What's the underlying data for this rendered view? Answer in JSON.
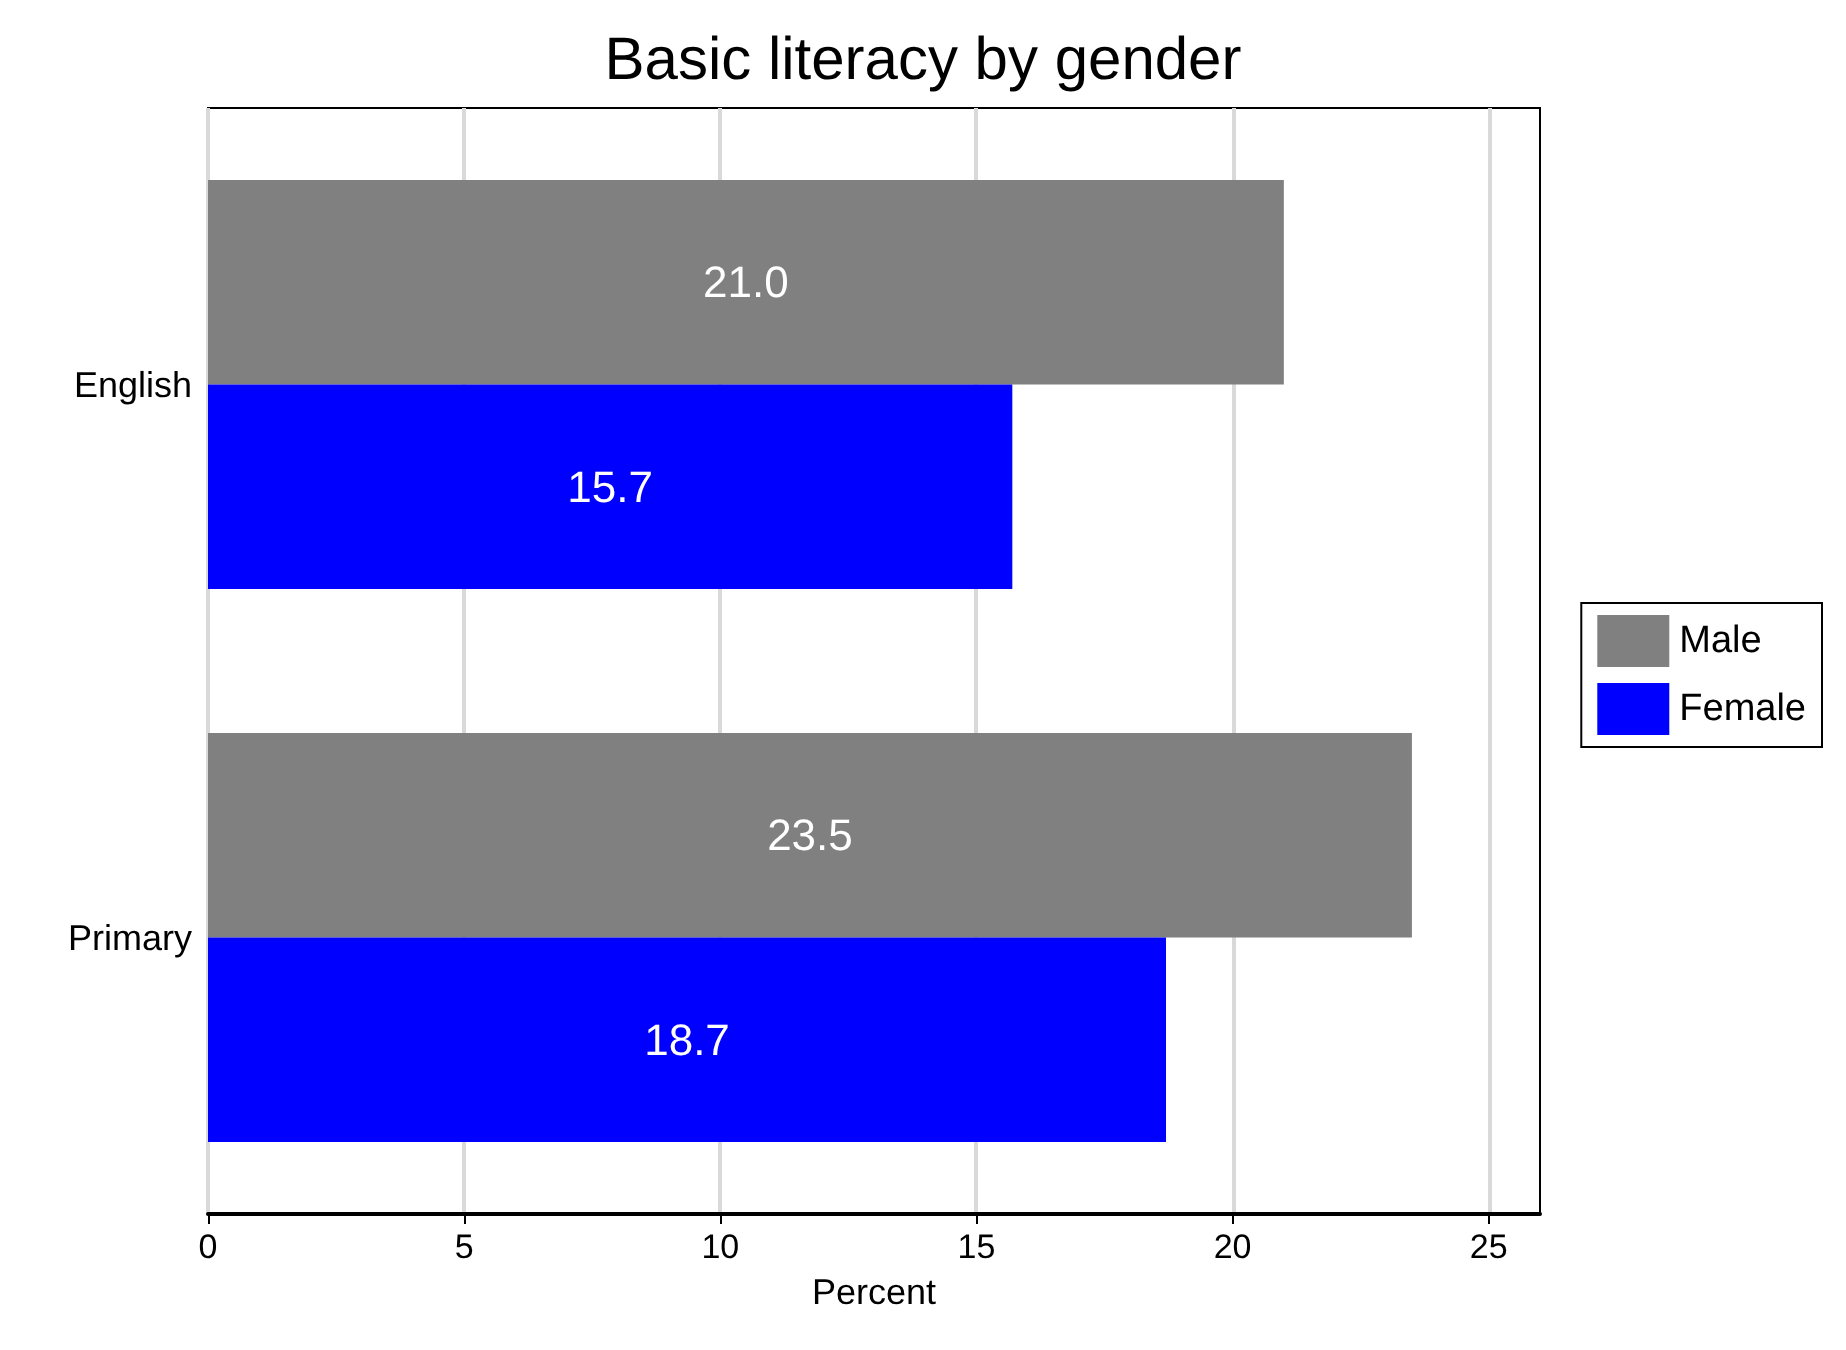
{
  "chart_data": {
    "type": "bar",
    "orientation": "horizontal",
    "title": "Basic literacy by gender",
    "xlabel": "Percent",
    "categories": [
      "English",
      "Primary"
    ],
    "series": [
      {
        "name": "Male",
        "color": "#808080",
        "values": [
          21.0,
          23.5
        ],
        "value_labels": [
          "21.0",
          "23.5"
        ]
      },
      {
        "name": "Female",
        "color": "#0000ff",
        "values": [
          15.7,
          18.7
        ],
        "value_labels": [
          "15.7",
          "18.7"
        ]
      }
    ],
    "xlim": [
      0,
      26
    ],
    "xticks": [
      0,
      5,
      10,
      15,
      20,
      25
    ],
    "grid": "x",
    "legend": "right"
  }
}
